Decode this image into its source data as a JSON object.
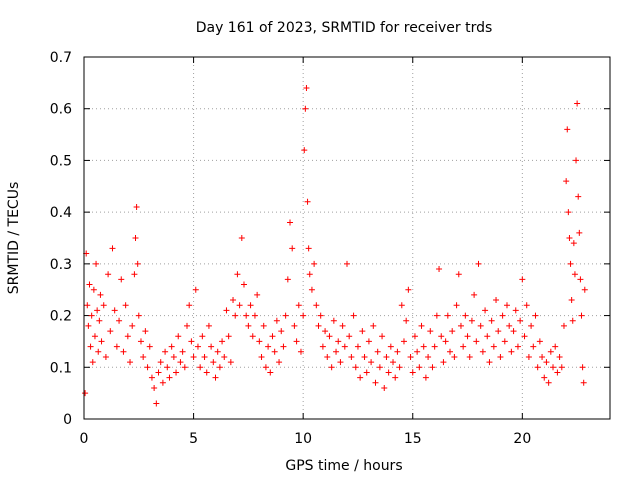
{
  "chart_data": {
    "type": "scatter",
    "title": "Day 161 of 2023, SRMTID for receiver trds",
    "xlabel": "GPS time / hours",
    "ylabel": "SRMTID / TECUs",
    "xlim": [
      0,
      24
    ],
    "ylim": [
      0,
      0.7
    ],
    "xticks": [
      0,
      5,
      10,
      15,
      20
    ],
    "xtick_labels": [
      "0",
      "5",
      "10",
      "15",
      "20"
    ],
    "yticks": [
      0,
      0.1,
      0.2,
      0.3,
      0.4,
      0.5,
      0.6,
      0.7
    ],
    "ytick_labels": [
      "0",
      "0.1",
      "0.2",
      "0.3",
      "0.4",
      "0.5",
      "0.6",
      "0.7"
    ],
    "grid": true,
    "marker": "+",
    "color": "#ff0000",
    "series": [
      {
        "name": "SRMTID",
        "points": [
          [
            0.05,
            0.05
          ],
          [
            0.1,
            0.32
          ],
          [
            0.15,
            0.22
          ],
          [
            0.2,
            0.18
          ],
          [
            0.25,
            0.26
          ],
          [
            0.3,
            0.14
          ],
          [
            0.35,
            0.2
          ],
          [
            0.4,
            0.11
          ],
          [
            0.45,
            0.25
          ],
          [
            0.5,
            0.16
          ],
          [
            0.55,
            0.3
          ],
          [
            0.6,
            0.21
          ],
          [
            0.65,
            0.13
          ],
          [
            0.7,
            0.19
          ],
          [
            0.75,
            0.24
          ],
          [
            0.8,
            0.15
          ],
          [
            0.9,
            0.22
          ],
          [
            1.0,
            0.12
          ],
          [
            1.1,
            0.28
          ],
          [
            1.2,
            0.17
          ],
          [
            1.3,
            0.33
          ],
          [
            1.4,
            0.21
          ],
          [
            1.5,
            0.14
          ],
          [
            1.6,
            0.19
          ],
          [
            1.7,
            0.27
          ],
          [
            1.8,
            0.13
          ],
          [
            1.9,
            0.22
          ],
          [
            2.0,
            0.16
          ],
          [
            2.1,
            0.11
          ],
          [
            2.2,
            0.18
          ],
          [
            2.3,
            0.28
          ],
          [
            2.35,
            0.35
          ],
          [
            2.4,
            0.41
          ],
          [
            2.45,
            0.3
          ],
          [
            2.5,
            0.2
          ],
          [
            2.6,
            0.15
          ],
          [
            2.7,
            0.12
          ],
          [
            2.8,
            0.17
          ],
          [
            2.9,
            0.1
          ],
          [
            3.0,
            0.14
          ],
          [
            3.1,
            0.08
          ],
          [
            3.2,
            0.06
          ],
          [
            3.3,
            0.03
          ],
          [
            3.4,
            0.09
          ],
          [
            3.5,
            0.11
          ],
          [
            3.6,
            0.07
          ],
          [
            3.7,
            0.13
          ],
          [
            3.8,
            0.1
          ],
          [
            3.9,
            0.08
          ],
          [
            4.0,
            0.14
          ],
          [
            4.1,
            0.12
          ],
          [
            4.2,
            0.09
          ],
          [
            4.3,
            0.16
          ],
          [
            4.4,
            0.11
          ],
          [
            4.5,
            0.13
          ],
          [
            4.6,
            0.1
          ],
          [
            4.7,
            0.18
          ],
          [
            4.8,
            0.22
          ],
          [
            4.9,
            0.15
          ],
          [
            5.0,
            0.12
          ],
          [
            5.1,
            0.25
          ],
          [
            5.2,
            0.14
          ],
          [
            5.3,
            0.1
          ],
          [
            5.4,
            0.16
          ],
          [
            5.5,
            0.12
          ],
          [
            5.6,
            0.09
          ],
          [
            5.7,
            0.18
          ],
          [
            5.8,
            0.14
          ],
          [
            5.9,
            0.11
          ],
          [
            6.0,
            0.08
          ],
          [
            6.1,
            0.13
          ],
          [
            6.2,
            0.1
          ],
          [
            6.3,
            0.15
          ],
          [
            6.4,
            0.12
          ],
          [
            6.5,
            0.21
          ],
          [
            6.6,
            0.16
          ],
          [
            6.7,
            0.11
          ],
          [
            6.8,
            0.23
          ],
          [
            6.9,
            0.2
          ],
          [
            7.0,
            0.28
          ],
          [
            7.1,
            0.22
          ],
          [
            7.2,
            0.35
          ],
          [
            7.3,
            0.26
          ],
          [
            7.4,
            0.2
          ],
          [
            7.5,
            0.18
          ],
          [
            7.6,
            0.22
          ],
          [
            7.7,
            0.16
          ],
          [
            7.8,
            0.2
          ],
          [
            7.9,
            0.24
          ],
          [
            8.0,
            0.15
          ],
          [
            8.1,
            0.12
          ],
          [
            8.2,
            0.18
          ],
          [
            8.3,
            0.1
          ],
          [
            8.4,
            0.14
          ],
          [
            8.5,
            0.09
          ],
          [
            8.6,
            0.16
          ],
          [
            8.7,
            0.13
          ],
          [
            8.8,
            0.19
          ],
          [
            8.9,
            0.11
          ],
          [
            9.0,
            0.17
          ],
          [
            9.1,
            0.14
          ],
          [
            9.2,
            0.2
          ],
          [
            9.3,
            0.27
          ],
          [
            9.4,
            0.38
          ],
          [
            9.5,
            0.33
          ],
          [
            9.6,
            0.18
          ],
          [
            9.7,
            0.15
          ],
          [
            9.8,
            0.22
          ],
          [
            9.9,
            0.13
          ],
          [
            10.0,
            0.2
          ],
          [
            10.05,
            0.52
          ],
          [
            10.1,
            0.6
          ],
          [
            10.15,
            0.64
          ],
          [
            10.2,
            0.42
          ],
          [
            10.25,
            0.33
          ],
          [
            10.3,
            0.28
          ],
          [
            10.4,
            0.25
          ],
          [
            10.5,
            0.3
          ],
          [
            10.6,
            0.22
          ],
          [
            10.7,
            0.18
          ],
          [
            10.8,
            0.2
          ],
          [
            10.9,
            0.14
          ],
          [
            11.0,
            0.17
          ],
          [
            11.1,
            0.12
          ],
          [
            11.2,
            0.16
          ],
          [
            11.3,
            0.1
          ],
          [
            11.4,
            0.19
          ],
          [
            11.5,
            0.13
          ],
          [
            11.6,
            0.15
          ],
          [
            11.7,
            0.11
          ],
          [
            11.8,
            0.18
          ],
          [
            11.9,
            0.14
          ],
          [
            12.0,
            0.3
          ],
          [
            12.1,
            0.16
          ],
          [
            12.2,
            0.12
          ],
          [
            12.3,
            0.2
          ],
          [
            12.4,
            0.1
          ],
          [
            12.5,
            0.14
          ],
          [
            12.6,
            0.08
          ],
          [
            12.7,
            0.17
          ],
          [
            12.8,
            0.12
          ],
          [
            12.9,
            0.09
          ],
          [
            13.0,
            0.15
          ],
          [
            13.1,
            0.11
          ],
          [
            13.2,
            0.18
          ],
          [
            13.3,
            0.07
          ],
          [
            13.4,
            0.13
          ],
          [
            13.5,
            0.1
          ],
          [
            13.6,
            0.16
          ],
          [
            13.7,
            0.06
          ],
          [
            13.8,
            0.12
          ],
          [
            13.9,
            0.09
          ],
          [
            14.0,
            0.14
          ],
          [
            14.1,
            0.11
          ],
          [
            14.2,
            0.08
          ],
          [
            14.3,
            0.13
          ],
          [
            14.4,
            0.1
          ],
          [
            14.5,
            0.22
          ],
          [
            14.6,
            0.15
          ],
          [
            14.7,
            0.19
          ],
          [
            14.8,
            0.25
          ],
          [
            14.9,
            0.12
          ],
          [
            15.0,
            0.09
          ],
          [
            15.1,
            0.16
          ],
          [
            15.2,
            0.13
          ],
          [
            15.3,
            0.1
          ],
          [
            15.4,
            0.18
          ],
          [
            15.5,
            0.14
          ],
          [
            15.6,
            0.08
          ],
          [
            15.7,
            0.12
          ],
          [
            15.8,
            0.17
          ],
          [
            15.9,
            0.1
          ],
          [
            16.0,
            0.14
          ],
          [
            16.1,
            0.2
          ],
          [
            16.2,
            0.29
          ],
          [
            16.3,
            0.16
          ],
          [
            16.4,
            0.11
          ],
          [
            16.5,
            0.15
          ],
          [
            16.6,
            0.2
          ],
          [
            16.7,
            0.13
          ],
          [
            16.8,
            0.17
          ],
          [
            16.9,
            0.12
          ],
          [
            17.0,
            0.22
          ],
          [
            17.1,
            0.28
          ],
          [
            17.2,
            0.18
          ],
          [
            17.3,
            0.14
          ],
          [
            17.4,
            0.2
          ],
          [
            17.5,
            0.16
          ],
          [
            17.6,
            0.12
          ],
          [
            17.7,
            0.19
          ],
          [
            17.8,
            0.24
          ],
          [
            17.9,
            0.15
          ],
          [
            18.0,
            0.3
          ],
          [
            18.1,
            0.18
          ],
          [
            18.2,
            0.13
          ],
          [
            18.3,
            0.21
          ],
          [
            18.4,
            0.16
          ],
          [
            18.5,
            0.11
          ],
          [
            18.6,
            0.19
          ],
          [
            18.7,
            0.14
          ],
          [
            18.8,
            0.23
          ],
          [
            18.9,
            0.17
          ],
          [
            19.0,
            0.12
          ],
          [
            19.1,
            0.2
          ],
          [
            19.2,
            0.15
          ],
          [
            19.3,
            0.22
          ],
          [
            19.4,
            0.18
          ],
          [
            19.5,
            0.13
          ],
          [
            19.6,
            0.17
          ],
          [
            19.7,
            0.21
          ],
          [
            19.8,
            0.14
          ],
          [
            19.9,
            0.19
          ],
          [
            20.0,
            0.27
          ],
          [
            20.1,
            0.16
          ],
          [
            20.2,
            0.22
          ],
          [
            20.3,
            0.12
          ],
          [
            20.4,
            0.18
          ],
          [
            20.5,
            0.14
          ],
          [
            20.6,
            0.2
          ],
          [
            20.7,
            0.1
          ],
          [
            20.8,
            0.15
          ],
          [
            20.9,
            0.12
          ],
          [
            21.0,
            0.08
          ],
          [
            21.1,
            0.11
          ],
          [
            21.2,
            0.07
          ],
          [
            21.3,
            0.13
          ],
          [
            21.4,
            0.1
          ],
          [
            21.5,
            0.14
          ],
          [
            21.6,
            0.09
          ],
          [
            21.7,
            0.12
          ],
          [
            21.8,
            0.1
          ],
          [
            21.9,
            0.18
          ],
          [
            22.0,
            0.46
          ],
          [
            22.05,
            0.56
          ],
          [
            22.1,
            0.4
          ],
          [
            22.15,
            0.35
          ],
          [
            22.2,
            0.3
          ],
          [
            22.25,
            0.23
          ],
          [
            22.3,
            0.19
          ],
          [
            22.35,
            0.34
          ],
          [
            22.4,
            0.28
          ],
          [
            22.45,
            0.5
          ],
          [
            22.5,
            0.61
          ],
          [
            22.55,
            0.43
          ],
          [
            22.6,
            0.36
          ],
          [
            22.65,
            0.27
          ],
          [
            22.7,
            0.2
          ],
          [
            22.75,
            0.1
          ],
          [
            22.8,
            0.07
          ],
          [
            22.85,
            0.25
          ]
        ]
      }
    ]
  }
}
